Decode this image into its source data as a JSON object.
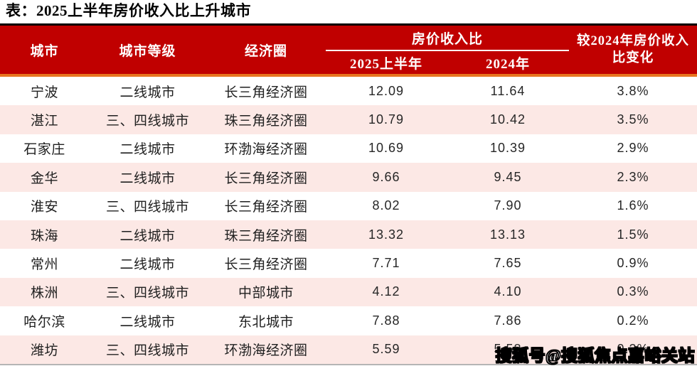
{
  "colors": {
    "header_bg": "#C00000",
    "header_top_border": "#000000",
    "accent_line": "#E8751F",
    "alt_row_bg": "#FCE8E5",
    "table_bottom_border": "#B5B5B5",
    "header_text": "#FFFFFF",
    "watermark_fill": "#FFFFFF",
    "watermark_stroke": "#000000"
  },
  "header": {
    "city": "城市",
    "tier": "城市等级",
    "region": "经济圈",
    "ratio_group": "房价收入比",
    "sub_2025": "2025上半年",
    "sub_2024": "2024年",
    "change_line1": "较2024年房价收入",
    "change_line2": "比变化"
  },
  "watermark": {
    "text": "搜狐号@搜狐焦点嘉峪关站"
  },
  "chart_data": {
    "type": "table",
    "title": "表：2025上半年房价收入比上升城市",
    "column_groups": [
      {
        "label": "房价收入比",
        "columns": [
          "2025上半年",
          "2024年"
        ]
      }
    ],
    "columns": [
      "城市",
      "城市等级",
      "经济圈",
      "2025上半年",
      "2024年",
      "较2024年房价收入比变化"
    ],
    "rows": [
      {
        "city": "宁波",
        "tier": "二线城市",
        "region": "长三角经济圈",
        "ratio_2025h1": "12.09",
        "ratio_2024": "11.64",
        "change": "3.8%"
      },
      {
        "city": "湛江",
        "tier": "三、四线城市",
        "region": "珠三角经济圈",
        "ratio_2025h1": "10.79",
        "ratio_2024": "10.42",
        "change": "3.5%"
      },
      {
        "city": "石家庄",
        "tier": "二线城市",
        "region": "环渤海经济圈",
        "ratio_2025h1": "10.69",
        "ratio_2024": "10.39",
        "change": "2.9%"
      },
      {
        "city": "金华",
        "tier": "二线城市",
        "region": "长三角经济圈",
        "ratio_2025h1": "9.66",
        "ratio_2024": "9.45",
        "change": "2.3%"
      },
      {
        "city": "淮安",
        "tier": "三、四线城市",
        "region": "长三角经济圈",
        "ratio_2025h1": "8.02",
        "ratio_2024": "7.90",
        "change": "1.6%"
      },
      {
        "city": "珠海",
        "tier": "二线城市",
        "region": "珠三角经济圈",
        "ratio_2025h1": "13.32",
        "ratio_2024": "13.13",
        "change": "1.5%"
      },
      {
        "city": "常州",
        "tier": "二线城市",
        "region": "长三角经济圈",
        "ratio_2025h1": "7.71",
        "ratio_2024": "7.65",
        "change": "0.9%"
      },
      {
        "city": "株洲",
        "tier": "三、四线城市",
        "region": "中部城市",
        "ratio_2025h1": "4.12",
        "ratio_2024": "4.10",
        "change": "0.3%"
      },
      {
        "city": "哈尔滨",
        "tier": "二线城市",
        "region": "东北城市",
        "ratio_2025h1": "7.88",
        "ratio_2024": "7.86",
        "change": "0.2%"
      },
      {
        "city": "潍坊",
        "tier": "三、四线城市",
        "region": "环渤海经济圈",
        "ratio_2025h1": "5.59",
        "ratio_2024": "5.58",
        "change": "0.2%"
      }
    ]
  }
}
